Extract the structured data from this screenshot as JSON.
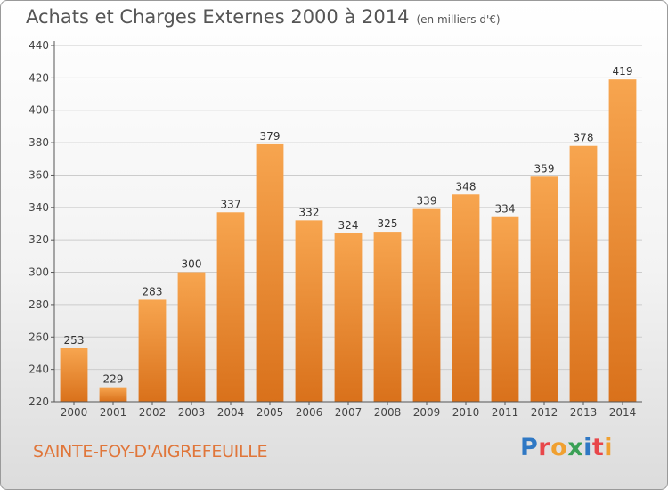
{
  "title": "Achats et Charges Externes 2000 à 2014",
  "subtitle": "(en milliers d'€)",
  "location": "SAINTE-FOY-D'AIGREFEUILLE",
  "logo": {
    "text": "Proxiti",
    "letters": [
      {
        "ch": "P",
        "color": "#2f78c4"
      },
      {
        "ch": "r",
        "color": "#e8474a"
      },
      {
        "ch": "o",
        "color": "#f0a030"
      },
      {
        "ch": "x",
        "color": "#3aa055"
      },
      {
        "ch": "i",
        "color": "#2f78c4"
      },
      {
        "ch": "t",
        "color": "#e8474a"
      },
      {
        "ch": "i",
        "color": "#f0a030"
      }
    ]
  },
  "colors": {
    "bar_top": "#f7a54f",
    "bar_bottom": "#d9711b",
    "grid": "#cccccc",
    "axis": "#555555"
  },
  "chart_data": {
    "type": "bar",
    "categories": [
      "2000",
      "2001",
      "2002",
      "2003",
      "2004",
      "2005",
      "2006",
      "2007",
      "2008",
      "2009",
      "2010",
      "2011",
      "2012",
      "2013",
      "2014"
    ],
    "values": [
      253,
      229,
      283,
      300,
      337,
      379,
      332,
      324,
      325,
      339,
      348,
      334,
      359,
      378,
      419
    ],
    "ylim": [
      220,
      440
    ],
    "yticks": [
      220,
      240,
      260,
      280,
      300,
      320,
      340,
      360,
      380,
      400,
      420,
      440
    ],
    "grid": true,
    "data_labels": true
  }
}
